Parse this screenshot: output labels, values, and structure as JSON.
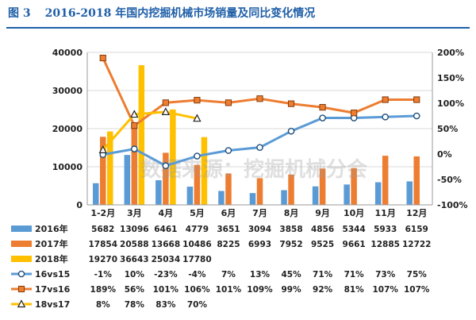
{
  "figure": {
    "number": "图 3",
    "title": "2016-2018 年国内挖掘机械市场销量及同比变化情况"
  },
  "watermark": "数据来源：挖掘机械分会",
  "colors": {
    "y2016": "#5b9bd5",
    "y2017": "#ed7d31",
    "y2018": "#ffc000",
    "line16": "#5b9bd5",
    "line17": "#ed7d31",
    "line18": "#ffc000",
    "title": "#1f5fa8",
    "grid": "#d9d9d9"
  },
  "chart_data": {
    "type": "bar",
    "categories": [
      "1-2月",
      "3月",
      "4月",
      "5月",
      "6月",
      "7月",
      "8月",
      "9月",
      "10月",
      "11月",
      "12月"
    ],
    "ylim": [
      0,
      40000
    ],
    "yticks": [
      "0",
      "10000",
      "20000",
      "30000",
      "40000"
    ],
    "y2lim": [
      -100,
      200
    ],
    "y2ticks": [
      "-100%",
      "-50%",
      "0%",
      "50%",
      "100%",
      "150%",
      "200%"
    ],
    "grid": true,
    "legend": "table-bottom",
    "bars": [
      {
        "name": "2016年",
        "color_key": "y2016",
        "values": [
          5682,
          13096,
          6461,
          4779,
          3651,
          3094,
          3858,
          4856,
          5344,
          5933,
          6159
        ],
        "labels": [
          "5682",
          "13096",
          "6461",
          "4779",
          "3651",
          "3094",
          "3858",
          "4856",
          "5344",
          "5933",
          "6159"
        ]
      },
      {
        "name": "2017年",
        "color_key": "y2017",
        "values": [
          17854,
          20588,
          13668,
          10486,
          8225,
          6993,
          7952,
          9525,
          9661,
          12885,
          12722
        ],
        "labels": [
          "17854",
          "20588",
          "13668",
          "10486",
          "8225",
          "6993",
          "7952",
          "9525",
          "9661",
          "12885",
          "12722"
        ]
      },
      {
        "name": "2018年",
        "color_key": "y2018",
        "values": [
          19270,
          36643,
          25034,
          17780,
          null,
          null,
          null,
          null,
          null,
          null,
          null
        ],
        "labels": [
          "19270",
          "36643",
          "25034",
          "17780",
          "",
          "",
          "",
          "",
          "",
          "",
          ""
        ]
      }
    ],
    "lines": [
      {
        "name": "16vs15",
        "color_key": "line16",
        "marker": "circle",
        "values": [
          -1,
          10,
          -23,
          -4,
          7,
          13,
          45,
          71,
          71,
          73,
          75
        ],
        "labels": [
          "-1%",
          "10%",
          "-23%",
          "-4%",
          "7%",
          "13%",
          "45%",
          "71%",
          "71%",
          "73%",
          "75%"
        ]
      },
      {
        "name": "17vs16",
        "color_key": "line17",
        "marker": "square",
        "values": [
          189,
          56,
          101,
          106,
          101,
          109,
          99,
          92,
          81,
          107,
          107
        ],
        "labels": [
          "189%",
          "56%",
          "101%",
          "106%",
          "101%",
          "109%",
          "99%",
          "92%",
          "81%",
          "107%",
          "107%"
        ]
      },
      {
        "name": "18vs17",
        "color_key": "line18",
        "marker": "triangle",
        "values": [
          8,
          78,
          83,
          70,
          null,
          null,
          null,
          null,
          null,
          null,
          null
        ],
        "labels": [
          "8%",
          "78%",
          "83%",
          "70%",
          "",
          "",
          "",
          "",
          "",
          "",
          ""
        ]
      }
    ]
  }
}
